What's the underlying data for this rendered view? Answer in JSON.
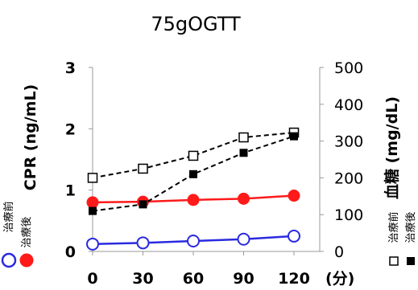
{
  "chart_data": {
    "type": "line",
    "title": "75gOGTT",
    "x": [
      0,
      30,
      60,
      90,
      120
    ],
    "x_tick_labels": [
      "0",
      "30",
      "60",
      "90",
      "120"
    ],
    "x_unit": "(分)",
    "y_left": {
      "label": "CPR (ng/mL)",
      "lim": [
        0,
        3
      ],
      "ticks": [
        "0",
        "1",
        "2",
        "3"
      ]
    },
    "y_right": {
      "label": "血糖 (mg/dL)",
      "lim": [
        0,
        500
      ],
      "ticks": [
        "0",
        "100",
        "200",
        "300",
        "400",
        "500"
      ]
    },
    "series": [
      {
        "name": "治療前",
        "group": "CPR",
        "axis": "left",
        "color": "#2a2ae0",
        "marker": "open-circle",
        "line": "solid",
        "values": [
          0.12,
          0.14,
          0.17,
          0.2,
          0.25
        ]
      },
      {
        "name": "治療後",
        "group": "CPR",
        "axis": "left",
        "color": "#ff1a1a",
        "marker": "filled-circle",
        "line": "solid",
        "values": [
          0.8,
          0.81,
          0.84,
          0.86,
          0.91
        ]
      },
      {
        "name": "治療前",
        "group": "血糖",
        "axis": "right",
        "color": "#000000",
        "marker": "open-square",
        "line": "dashed",
        "values": [
          200,
          225,
          260,
          310,
          323
        ]
      },
      {
        "name": "治療後",
        "group": "血糖",
        "axis": "right",
        "color": "#000000",
        "marker": "filled-square",
        "line": "dashed",
        "values": [
          110,
          128,
          210,
          268,
          313
        ]
      }
    ],
    "legend_left": {
      "label_before": "治療前",
      "label_after": "治療後"
    },
    "legend_right": {
      "label_before": "治療前",
      "label_after": "治療後"
    },
    "grid": false
  }
}
